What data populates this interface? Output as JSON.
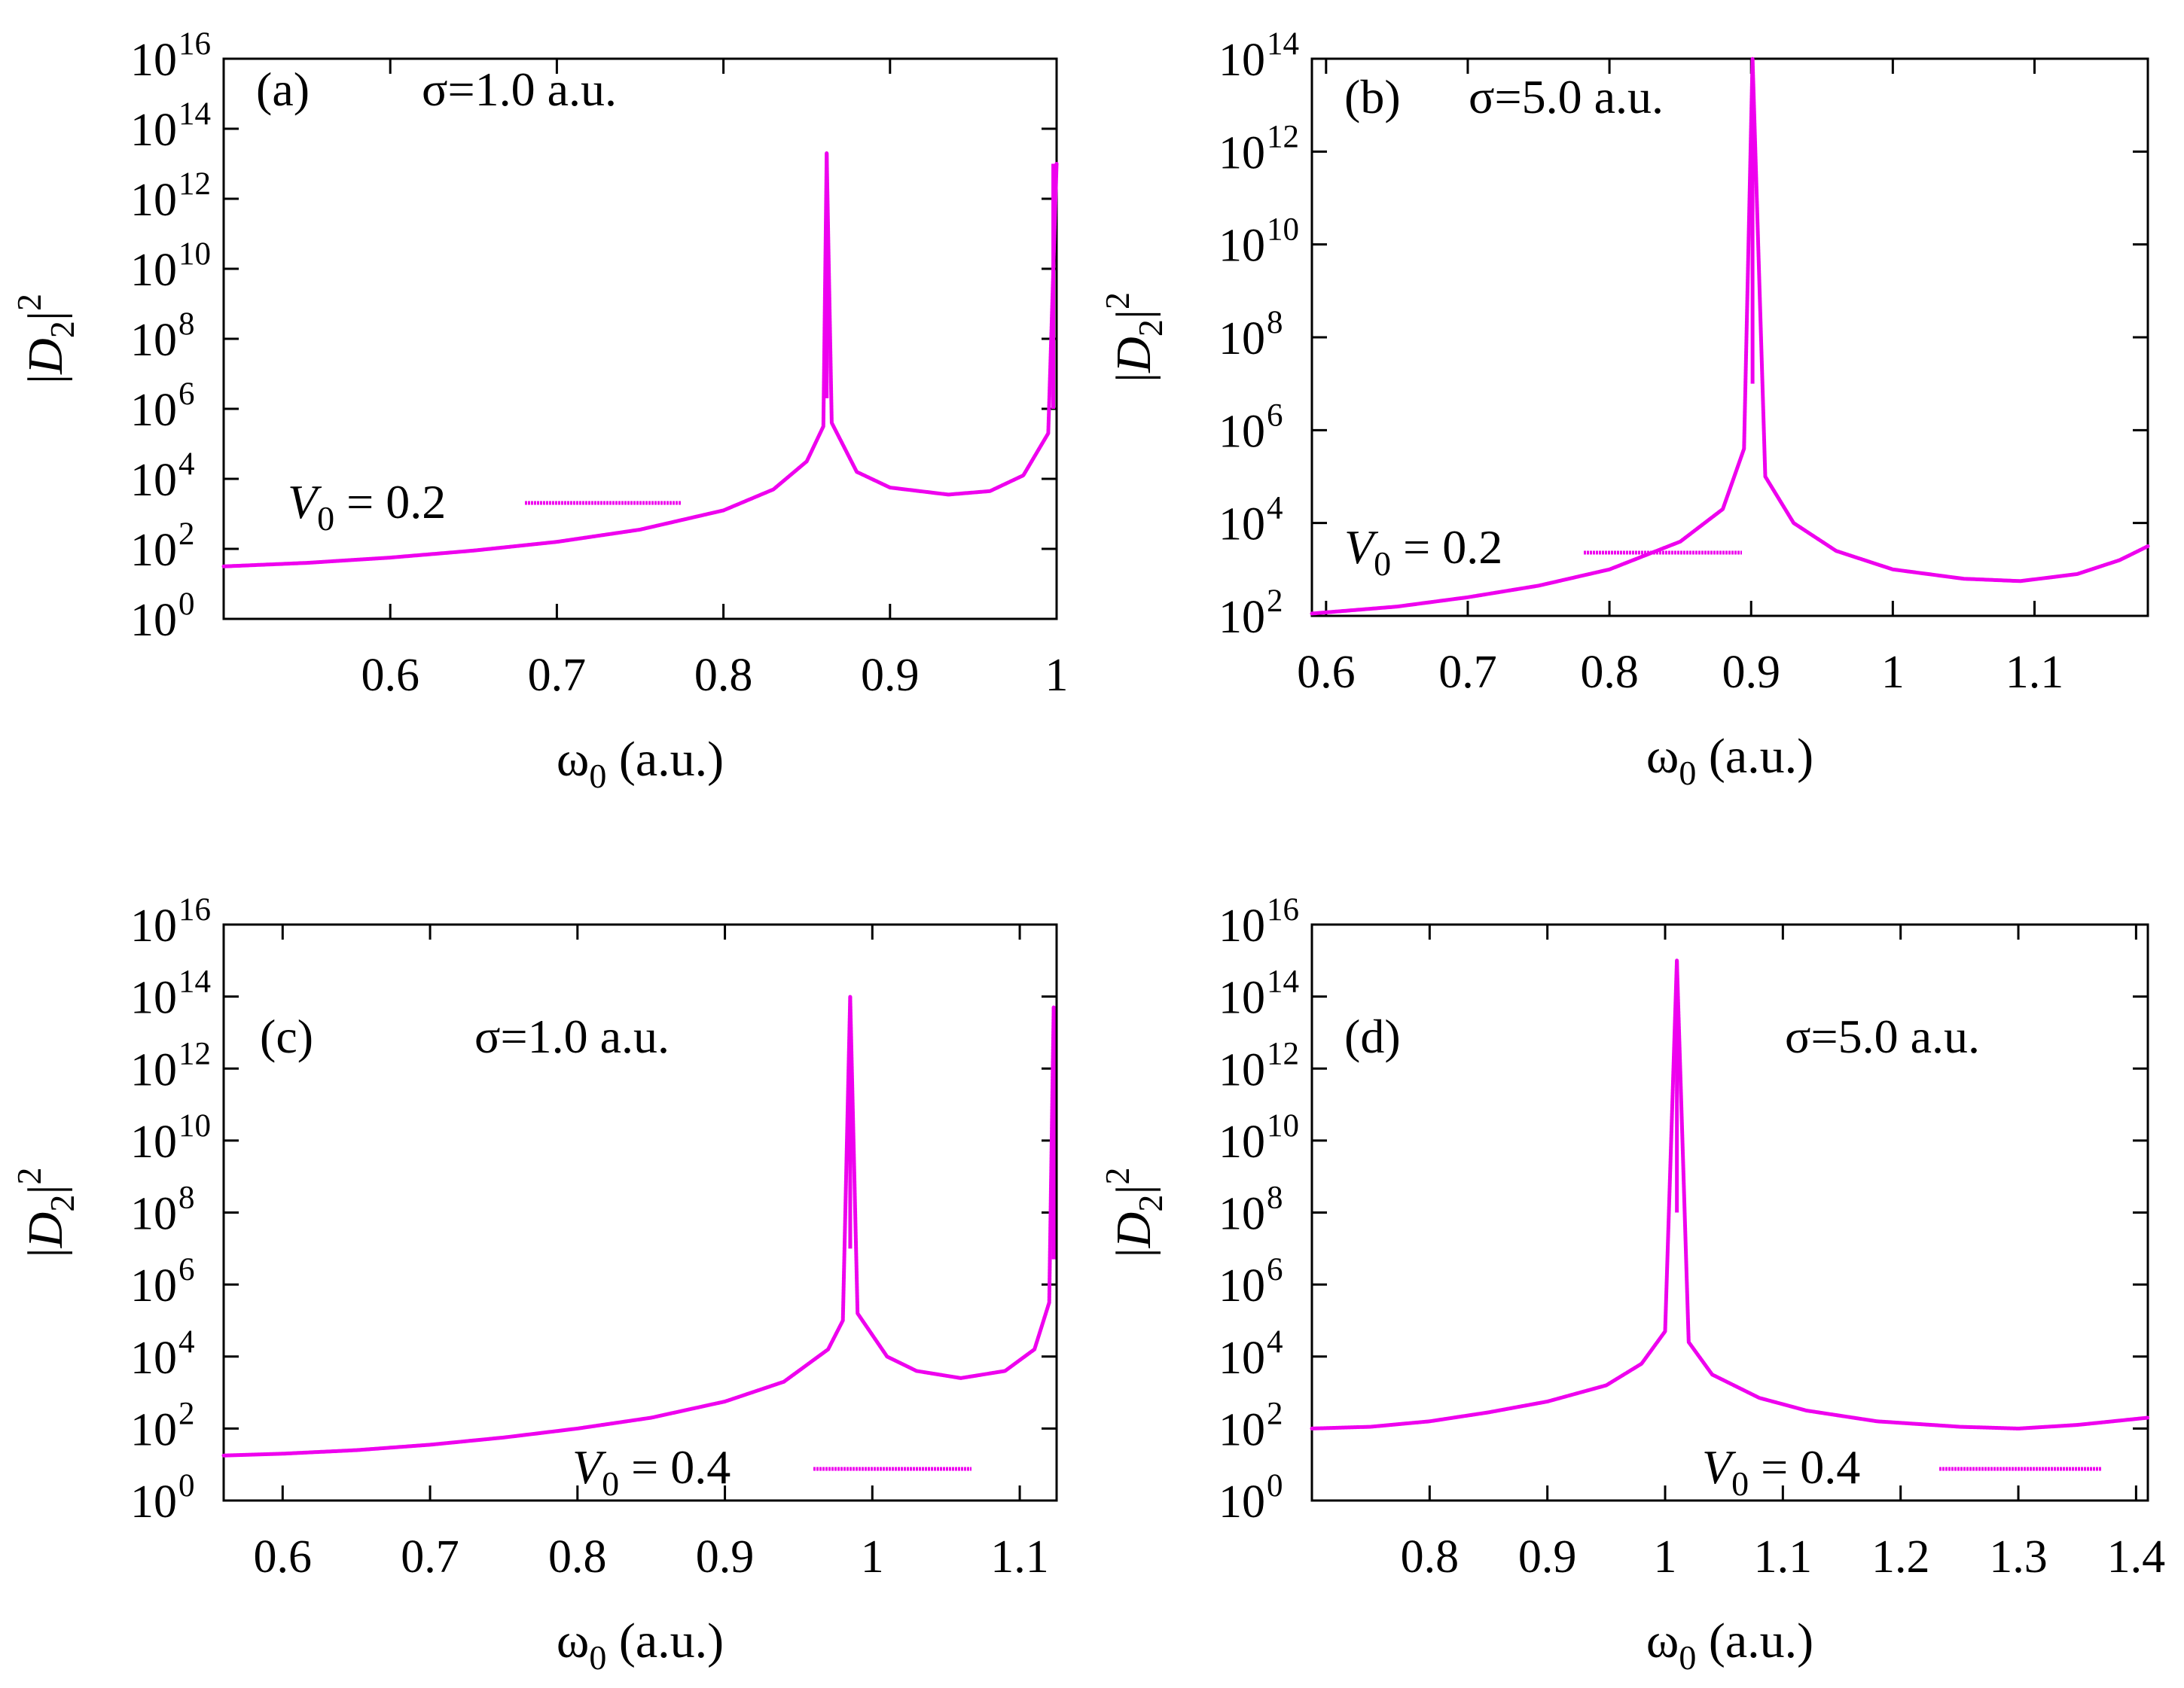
{
  "figure": {
    "line_color": "#ee00ee"
  },
  "chart_data": [
    {
      "type": "line",
      "panel_label": "(a)",
      "annotation": "σ=1.0 a.u.",
      "xlabel": "ω0 (a.u.)",
      "ylabel": "|D2|2",
      "yscale": "log",
      "xlim": [
        0.5,
        1.0
      ],
      "ylim_exp": [
        0,
        16
      ],
      "x_ticks": [
        0.6,
        0.7,
        0.8,
        0.9,
        1.0
      ],
      "x_tick_labels": [
        "0.6",
        "0.7",
        "0.8",
        "0.9",
        "1"
      ],
      "y_tick_exponents": [
        0,
        2,
        4,
        6,
        8,
        10,
        12,
        14,
        16
      ],
      "legend": {
        "label": "V0 = 0.2",
        "position": "middle-left"
      },
      "resonances": [
        0.862,
        0.998
      ],
      "peak_heights_exp": [
        13.3,
        13.0
      ],
      "series": [
        {
          "name": "V0 = 0.2",
          "x": [
            0.5,
            0.55,
            0.6,
            0.65,
            0.7,
            0.75,
            0.8,
            0.83,
            0.85,
            0.86,
            0.862,
            0.865,
            0.88,
            0.9,
            0.935,
            0.96,
            0.98,
            0.995,
            1.0
          ],
          "log10_y": [
            1.5,
            1.6,
            1.75,
            1.95,
            2.2,
            2.55,
            3.1,
            3.7,
            4.5,
            5.5,
            13.3,
            5.6,
            4.2,
            3.75,
            3.55,
            3.65,
            4.1,
            5.3,
            13.0
          ]
        }
      ]
    },
    {
      "type": "line",
      "panel_label": "(b)",
      "annotation": "σ=5.0 a.u.",
      "xlabel": "ω0 (a.u.)",
      "ylabel": "|D2|2",
      "yscale": "log",
      "xlim": [
        0.59,
        1.18
      ],
      "ylim_exp": [
        2,
        14
      ],
      "x_ticks": [
        0.6,
        0.7,
        0.8,
        0.9,
        1.0,
        1.1
      ],
      "x_tick_labels": [
        "0.6",
        "0.7",
        "0.8",
        "0.9",
        "1",
        "1.1"
      ],
      "y_tick_exponents": [
        2,
        4,
        6,
        8,
        10,
        12,
        14
      ],
      "legend": {
        "label": "V0 = 0.2",
        "position": "lower-left"
      },
      "resonances": [
        0.901
      ],
      "peak_heights_exp": [
        14.0
      ],
      "series": [
        {
          "name": "V0 = 0.2",
          "x": [
            0.59,
            0.65,
            0.7,
            0.75,
            0.8,
            0.85,
            0.88,
            0.895,
            0.901,
            0.91,
            0.93,
            0.96,
            1.0,
            1.05,
            1.09,
            1.13,
            1.16,
            1.18
          ],
          "log10_y": [
            2.05,
            2.2,
            2.4,
            2.65,
            3.0,
            3.6,
            4.3,
            5.6,
            14.0,
            5.0,
            4.0,
            3.4,
            3.0,
            2.8,
            2.75,
            2.9,
            3.2,
            3.5
          ]
        }
      ]
    },
    {
      "type": "line",
      "panel_label": "(c)",
      "annotation": "σ=1.0 a.u.",
      "xlabel": "ω0 (a.u.)",
      "ylabel": "|D2|2",
      "yscale": "log",
      "xlim": [
        0.56,
        1.125
      ],
      "ylim_exp": [
        0,
        16
      ],
      "x_ticks": [
        0.6,
        0.7,
        0.8,
        0.9,
        1.0,
        1.1
      ],
      "x_tick_labels": [
        "0.6",
        "0.7",
        "0.8",
        "0.9",
        "1",
        "1.1"
      ],
      "y_tick_exponents": [
        0,
        2,
        4,
        6,
        8,
        10,
        12,
        14,
        16
      ],
      "legend": {
        "label": "V0 = 0.4",
        "position": "bottom-center"
      },
      "resonances": [
        0.985,
        1.123
      ],
      "peak_heights_exp": [
        14.0,
        13.7
      ],
      "series": [
        {
          "name": "V0 = 0.4",
          "x": [
            0.56,
            0.6,
            0.65,
            0.7,
            0.75,
            0.8,
            0.85,
            0.9,
            0.94,
            0.97,
            0.98,
            0.985,
            0.99,
            1.01,
            1.03,
            1.06,
            1.09,
            1.11,
            1.12,
            1.123
          ],
          "log10_y": [
            1.25,
            1.3,
            1.4,
            1.55,
            1.75,
            2.0,
            2.3,
            2.75,
            3.3,
            4.2,
            5.0,
            14.0,
            5.2,
            4.0,
            3.6,
            3.4,
            3.6,
            4.2,
            5.5,
            13.7
          ]
        }
      ]
    },
    {
      "type": "line",
      "panel_label": "(d)",
      "annotation": "σ=5.0 a.u.",
      "xlabel": "ω0 (a.u.)",
      "ylabel": "|D2|2",
      "yscale": "log",
      "xlim": [
        0.7,
        1.41
      ],
      "ylim_exp": [
        0,
        16
      ],
      "x_ticks": [
        0.8,
        0.9,
        1.0,
        1.1,
        1.2,
        1.3,
        1.4
      ],
      "x_tick_labels": [
        "0.8",
        "0.9",
        "1",
        "1.1",
        "1.2",
        "1.3",
        "1.4"
      ],
      "y_tick_exponents": [
        0,
        2,
        4,
        6,
        8,
        10,
        12,
        14,
        16
      ],
      "legend": {
        "label": "V0 = 0.4",
        "position": "bottom-right"
      },
      "resonances": [
        1.01
      ],
      "peak_heights_exp": [
        15.0
      ],
      "series": [
        {
          "name": "V0 = 0.4",
          "x": [
            0.7,
            0.75,
            0.8,
            0.85,
            0.9,
            0.95,
            0.98,
            1.0,
            1.01,
            1.02,
            1.04,
            1.08,
            1.12,
            1.18,
            1.25,
            1.3,
            1.35,
            1.41
          ],
          "log10_y": [
            2.0,
            2.05,
            2.2,
            2.45,
            2.75,
            3.2,
            3.8,
            4.7,
            15.0,
            4.4,
            3.5,
            2.85,
            2.5,
            2.2,
            2.05,
            2.0,
            2.1,
            2.3
          ]
        }
      ]
    }
  ]
}
